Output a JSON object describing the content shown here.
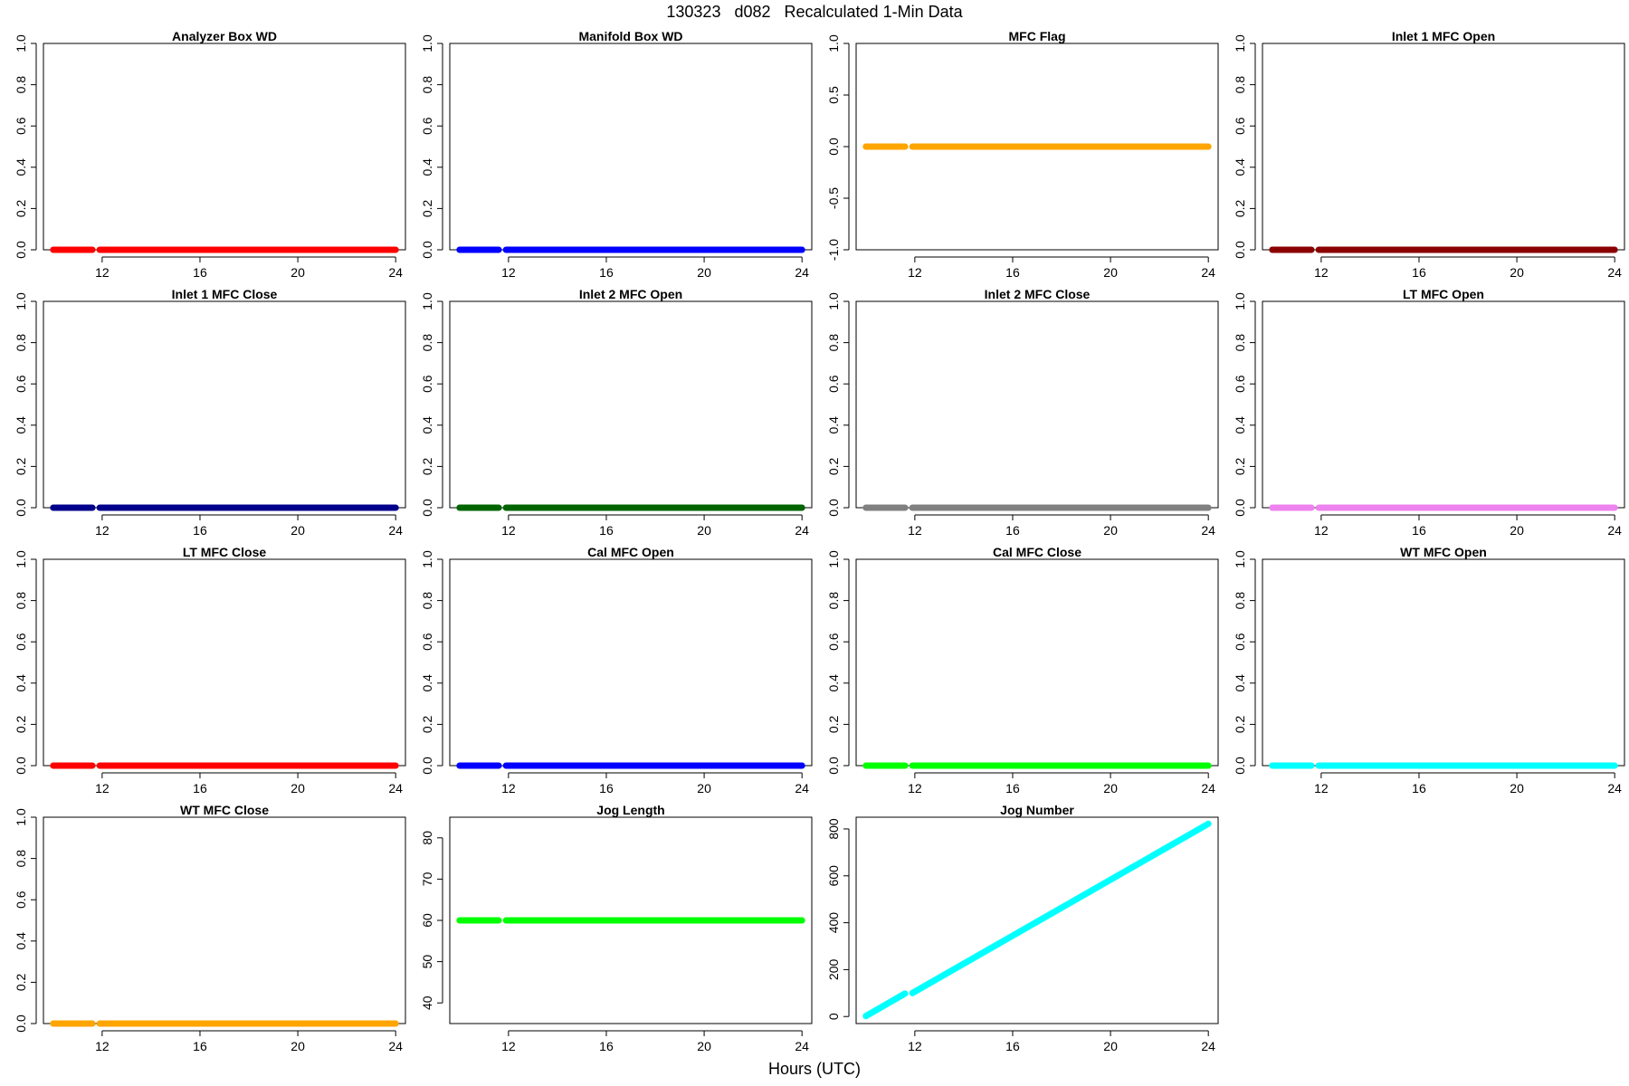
{
  "title": "130323   d082   Recalculated 1-Min Data",
  "xlabel": "Hours (UTC)",
  "chart_data": [
    {
      "type": "line",
      "title": "Analyzer Box WD",
      "color": "#ff0000",
      "ylim": [
        0,
        1
      ],
      "yticks": [
        "0.0",
        "0.2",
        "0.4",
        "0.6",
        "0.8",
        "1.0"
      ],
      "yticks_values": [
        0,
        0.2,
        0.4,
        0.6,
        0.8,
        1
      ],
      "xlim": [
        9.6,
        24.4
      ],
      "xticks": [
        12,
        16,
        20,
        24
      ],
      "segments": [
        {
          "x": [
            10,
            11.6
          ],
          "y": [
            0,
            0
          ]
        },
        {
          "x": [
            11.9,
            24
          ],
          "y": [
            0,
            0
          ]
        }
      ]
    },
    {
      "type": "line",
      "title": "Manifold Box WD",
      "color": "#0000ff",
      "ylim": [
        0,
        1
      ],
      "yticks": [
        "0.0",
        "0.2",
        "0.4",
        "0.6",
        "0.8",
        "1.0"
      ],
      "yticks_values": [
        0,
        0.2,
        0.4,
        0.6,
        0.8,
        1
      ],
      "xlim": [
        9.6,
        24.4
      ],
      "xticks": [
        12,
        16,
        20,
        24
      ],
      "segments": [
        {
          "x": [
            10,
            11.6
          ],
          "y": [
            0,
            0
          ]
        },
        {
          "x": [
            11.9,
            24
          ],
          "y": [
            0,
            0
          ]
        }
      ]
    },
    {
      "type": "line",
      "title": "MFC Flag",
      "color": "#ffa500",
      "ylim": [
        -1,
        1
      ],
      "yticks": [
        "-1.0",
        "-0.5",
        "0.0",
        "0.5",
        "1.0"
      ],
      "yticks_values": [
        -1,
        -0.5,
        0,
        0.5,
        1
      ],
      "xlim": [
        9.6,
        24.4
      ],
      "xticks": [
        12,
        16,
        20,
        24
      ],
      "segments": [
        {
          "x": [
            10,
            11.6
          ],
          "y": [
            0,
            0
          ]
        },
        {
          "x": [
            11.9,
            24
          ],
          "y": [
            0,
            0
          ]
        }
      ]
    },
    {
      "type": "line",
      "title": "Inlet 1 MFC Open",
      "color": "#8b0000",
      "ylim": [
        0,
        1
      ],
      "yticks": [
        "0.0",
        "0.2",
        "0.4",
        "0.6",
        "0.8",
        "1.0"
      ],
      "yticks_values": [
        0,
        0.2,
        0.4,
        0.6,
        0.8,
        1
      ],
      "xlim": [
        9.6,
        24.4
      ],
      "xticks": [
        12,
        16,
        20,
        24
      ],
      "segments": [
        {
          "x": [
            10,
            11.6
          ],
          "y": [
            0,
            0
          ]
        },
        {
          "x": [
            11.9,
            24
          ],
          "y": [
            0,
            0
          ]
        }
      ]
    },
    {
      "type": "line",
      "title": "Inlet 1 MFC Close",
      "color": "#00008b",
      "ylim": [
        0,
        1
      ],
      "yticks": [
        "0.0",
        "0.2",
        "0.4",
        "0.6",
        "0.8",
        "1.0"
      ],
      "yticks_values": [
        0,
        0.2,
        0.4,
        0.6,
        0.8,
        1
      ],
      "xlim": [
        9.6,
        24.4
      ],
      "xticks": [
        12,
        16,
        20,
        24
      ],
      "segments": [
        {
          "x": [
            10,
            11.6
          ],
          "y": [
            0,
            0
          ]
        },
        {
          "x": [
            11.9,
            24
          ],
          "y": [
            0,
            0
          ]
        }
      ]
    },
    {
      "type": "line",
      "title": "Inlet 2 MFC Open",
      "color": "#006400",
      "ylim": [
        0,
        1
      ],
      "yticks": [
        "0.0",
        "0.2",
        "0.4",
        "0.6",
        "0.8",
        "1.0"
      ],
      "yticks_values": [
        0,
        0.2,
        0.4,
        0.6,
        0.8,
        1
      ],
      "xlim": [
        9.6,
        24.4
      ],
      "xticks": [
        12,
        16,
        20,
        24
      ],
      "segments": [
        {
          "x": [
            10,
            11.6
          ],
          "y": [
            0,
            0
          ]
        },
        {
          "x": [
            11.9,
            24
          ],
          "y": [
            0,
            0
          ]
        }
      ]
    },
    {
      "type": "line",
      "title": "Inlet 2 MFC Close",
      "color": "#808080",
      "ylim": [
        0,
        1
      ],
      "yticks": [
        "0.0",
        "0.2",
        "0.4",
        "0.6",
        "0.8",
        "1.0"
      ],
      "yticks_values": [
        0,
        0.2,
        0.4,
        0.6,
        0.8,
        1
      ],
      "xlim": [
        9.6,
        24.4
      ],
      "xticks": [
        12,
        16,
        20,
        24
      ],
      "segments": [
        {
          "x": [
            10,
            11.6
          ],
          "y": [
            0,
            0
          ]
        },
        {
          "x": [
            11.9,
            24
          ],
          "y": [
            0,
            0
          ]
        }
      ]
    },
    {
      "type": "line",
      "title": "LT MFC Open",
      "color": "#ee82ee",
      "ylim": [
        0,
        1
      ],
      "yticks": [
        "0.0",
        "0.2",
        "0.4",
        "0.6",
        "0.8",
        "1.0"
      ],
      "yticks_values": [
        0,
        0.2,
        0.4,
        0.6,
        0.8,
        1
      ],
      "xlim": [
        9.6,
        24.4
      ],
      "xticks": [
        12,
        16,
        20,
        24
      ],
      "segments": [
        {
          "x": [
            10,
            11.6
          ],
          "y": [
            0,
            0
          ]
        },
        {
          "x": [
            11.9,
            24
          ],
          "y": [
            0,
            0
          ]
        }
      ]
    },
    {
      "type": "line",
      "title": "LT MFC Close",
      "color": "#ff0000",
      "ylim": [
        0,
        1
      ],
      "yticks": [
        "0.0",
        "0.2",
        "0.4",
        "0.6",
        "0.8",
        "1.0"
      ],
      "yticks_values": [
        0,
        0.2,
        0.4,
        0.6,
        0.8,
        1
      ],
      "xlim": [
        9.6,
        24.4
      ],
      "xticks": [
        12,
        16,
        20,
        24
      ],
      "segments": [
        {
          "x": [
            10,
            11.6
          ],
          "y": [
            0,
            0
          ]
        },
        {
          "x": [
            11.9,
            24
          ],
          "y": [
            0,
            0
          ]
        }
      ]
    },
    {
      "type": "line",
      "title": "Cal MFC Open",
      "color": "#0000ff",
      "ylim": [
        0,
        1
      ],
      "yticks": [
        "0.0",
        "0.2",
        "0.4",
        "0.6",
        "0.8",
        "1.0"
      ],
      "yticks_values": [
        0,
        0.2,
        0.4,
        0.6,
        0.8,
        1
      ],
      "xlim": [
        9.6,
        24.4
      ],
      "xticks": [
        12,
        16,
        20,
        24
      ],
      "segments": [
        {
          "x": [
            10,
            11.6
          ],
          "y": [
            0,
            0
          ]
        },
        {
          "x": [
            11.9,
            24
          ],
          "y": [
            0,
            0
          ]
        }
      ]
    },
    {
      "type": "line",
      "title": "Cal MFC Close",
      "color": "#00ff00",
      "ylim": [
        0,
        1
      ],
      "yticks": [
        "0.0",
        "0.2",
        "0.4",
        "0.6",
        "0.8",
        "1.0"
      ],
      "yticks_values": [
        0,
        0.2,
        0.4,
        0.6,
        0.8,
        1
      ],
      "xlim": [
        9.6,
        24.4
      ],
      "xticks": [
        12,
        16,
        20,
        24
      ],
      "segments": [
        {
          "x": [
            10,
            11.6
          ],
          "y": [
            0,
            0
          ]
        },
        {
          "x": [
            11.9,
            24
          ],
          "y": [
            0,
            0
          ]
        }
      ]
    },
    {
      "type": "line",
      "title": "WT MFC Open",
      "color": "#00ffff",
      "ylim": [
        0,
        1
      ],
      "yticks": [
        "0.0",
        "0.2",
        "0.4",
        "0.6",
        "0.8",
        "1.0"
      ],
      "yticks_values": [
        0,
        0.2,
        0.4,
        0.6,
        0.8,
        1
      ],
      "xlim": [
        9.6,
        24.4
      ],
      "xticks": [
        12,
        16,
        20,
        24
      ],
      "segments": [
        {
          "x": [
            10,
            11.6
          ],
          "y": [
            0,
            0
          ]
        },
        {
          "x": [
            11.9,
            24
          ],
          "y": [
            0,
            0
          ]
        }
      ]
    },
    {
      "type": "line",
      "title": "WT MFC Close",
      "color": "#ffa500",
      "ylim": [
        0,
        1
      ],
      "yticks": [
        "0.0",
        "0.2",
        "0.4",
        "0.6",
        "0.8",
        "1.0"
      ],
      "yticks_values": [
        0,
        0.2,
        0.4,
        0.6,
        0.8,
        1
      ],
      "xlim": [
        9.6,
        24.4
      ],
      "xticks": [
        12,
        16,
        20,
        24
      ],
      "segments": [
        {
          "x": [
            10,
            11.6
          ],
          "y": [
            0,
            0
          ]
        },
        {
          "x": [
            11.9,
            24
          ],
          "y": [
            0,
            0
          ]
        }
      ]
    },
    {
      "type": "line",
      "title": "Jog Length",
      "color": "#00ff00",
      "ylim": [
        35,
        85
      ],
      "yticks": [
        "40",
        "50",
        "60",
        "70",
        "80"
      ],
      "yticks_values": [
        40,
        50,
        60,
        70,
        80
      ],
      "xlim": [
        9.6,
        24.4
      ],
      "xticks": [
        12,
        16,
        20,
        24
      ],
      "segments": [
        {
          "x": [
            10,
            11.6
          ],
          "y": [
            60,
            60
          ]
        },
        {
          "x": [
            11.9,
            24
          ],
          "y": [
            60,
            60
          ]
        }
      ]
    },
    {
      "type": "line",
      "title": "Jog Number",
      "color": "#00ffff",
      "ylim": [
        -30,
        850
      ],
      "yticks": [
        "0",
        "200",
        "400",
        "600",
        "800"
      ],
      "yticks_values": [
        0,
        200,
        400,
        600,
        800
      ],
      "xlim": [
        9.6,
        24.4
      ],
      "xticks": [
        12,
        16,
        20,
        24
      ],
      "segments": [
        {
          "x": [
            10,
            11.6
          ],
          "y": [
            2,
            98
          ]
        },
        {
          "x": [
            11.9,
            24
          ],
          "y": [
            100,
            822
          ]
        }
      ]
    }
  ]
}
